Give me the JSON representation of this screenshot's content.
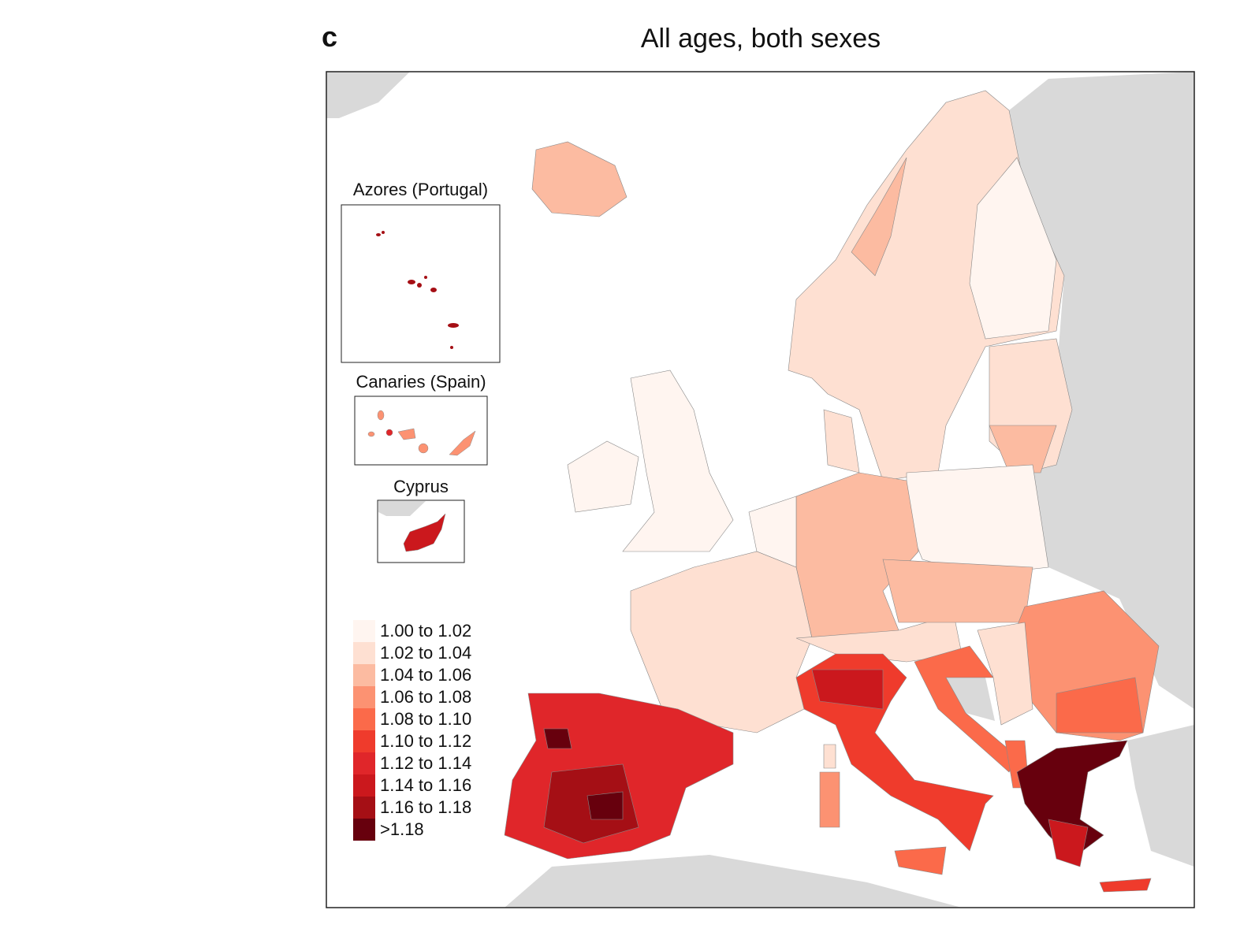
{
  "panel_label": "c",
  "title": "All ages, both sexes",
  "insets": [
    {
      "label": "Azores (Portugal)"
    },
    {
      "label": "Canaries (Spain)"
    },
    {
      "label": "Cyprus"
    }
  ],
  "legend": [
    {
      "label": "1.00 to 1.02",
      "color": "#fff5f0"
    },
    {
      "label": "1.02 to 1.04",
      "color": "#fee0d2"
    },
    {
      "label": "1.04 to 1.06",
      "color": "#fcbba1"
    },
    {
      "label": "1.06 to 1.08",
      "color": "#fc9272"
    },
    {
      "label": "1.08 to 1.10",
      "color": "#fb6a4a"
    },
    {
      "label": "1.10 to 1.12",
      "color": "#ef3b2c"
    },
    {
      "label": "1.12 to 1.14",
      "color": "#e0262a"
    },
    {
      "label": "1.14 to 1.16",
      "color": "#cb181d"
    },
    {
      "label": "1.16 to 1.18",
      "color": "#a50f15"
    },
    {
      "label": ">1.18",
      "color": "#67000d"
    }
  ],
  "colors": {
    "non_eu_land": "#d9d9d9",
    "sea": "#ffffff",
    "border": "#888888"
  }
}
